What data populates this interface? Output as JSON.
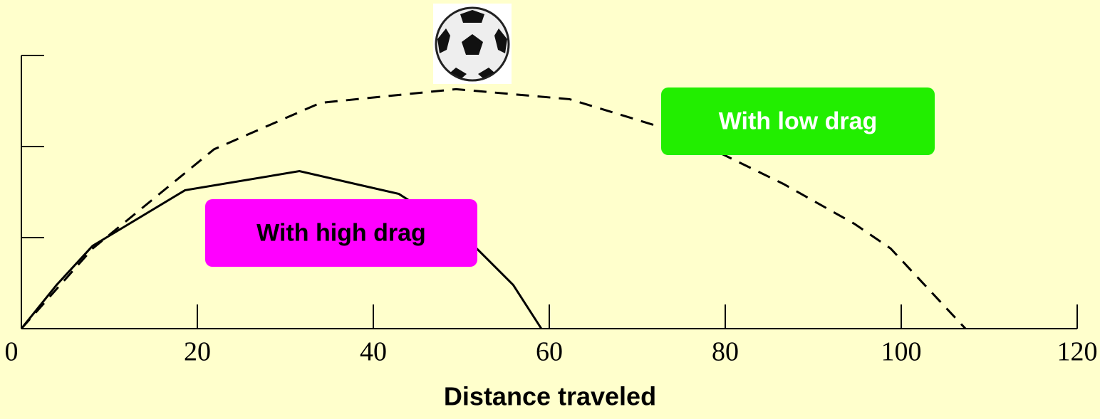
{
  "chart_data": {
    "type": "line",
    "x_label": "Distance traveled",
    "xlim": [
      0,
      120
    ],
    "xticks": [
      0,
      20,
      40,
      60,
      80,
      100,
      120
    ],
    "ylim": [
      0,
      3
    ],
    "yticks": [
      1,
      2,
      3
    ],
    "series": [
      {
        "name": "With high drag",
        "color": "#000000",
        "line_style": "solid",
        "label_color": "#ff00ff",
        "label_text_color": "#000000",
        "x": [
          0,
          4.0,
          8.1,
          18.6,
          31.6,
          42.9,
          50.2,
          55.9,
          59.1
        ],
        "values": [
          0,
          0.48,
          0.91,
          1.52,
          1.73,
          1.48,
          1.03,
          0.48,
          0
        ]
      },
      {
        "name": "With low drag",
        "color": "#000000",
        "line_style": "dashed",
        "label_color": "#22ee00",
        "label_text_color": "#ffffff",
        "x": [
          0,
          8.1,
          21.9,
          34.0,
          49.4,
          62.3,
          74.5,
          86.6,
          94.7,
          98.8,
          107.3
        ],
        "values": [
          0,
          0.88,
          1.97,
          2.48,
          2.63,
          2.52,
          2.16,
          1.59,
          1.15,
          0.88,
          0
        ]
      }
    ]
  }
}
